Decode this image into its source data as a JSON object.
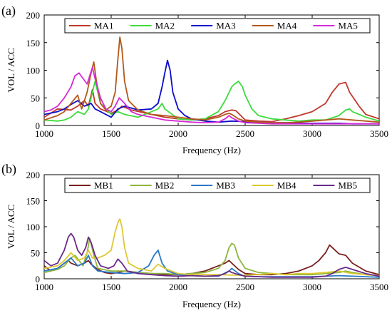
{
  "chart_data": [
    {
      "type": "line",
      "panel_label": "(a)",
      "xlabel": "Frequency (Hz)",
      "ylabel": "VOL / ACC",
      "xlim": [
        1000,
        3500
      ],
      "ylim": [
        0,
        200
      ],
      "xticks": [
        "1000",
        "1500",
        "2000",
        "2500",
        "3000",
        "3500"
      ],
      "yticks": [
        "0",
        "50",
        "100",
        "150",
        "200"
      ],
      "grid": false,
      "legend_position": "top",
      "series": [
        {
          "name": "MA1",
          "color": "#c0392b",
          "x": [
            1000,
            1100,
            1200,
            1250,
            1300,
            1330,
            1360,
            1380,
            1420,
            1500,
            1550,
            1580,
            1650,
            1800,
            1900,
            2000,
            2100,
            2200,
            2300,
            2350,
            2400,
            2430,
            2450,
            2500,
            2600,
            2700,
            2800,
            2900,
            3000,
            3100,
            3150,
            3200,
            3250,
            3280,
            3350,
            3400,
            3500
          ],
          "y": [
            15,
            30,
            28,
            35,
            45,
            35,
            65,
            40,
            30,
            22,
            28,
            35,
            28,
            20,
            15,
            12,
            10,
            12,
            18,
            25,
            28,
            27,
            22,
            10,
            8,
            7,
            12,
            18,
            25,
            40,
            60,
            75,
            78,
            60,
            35,
            20,
            12
          ]
        },
        {
          "name": "MA2",
          "color": "#3ddc3d",
          "x": [
            1000,
            1100,
            1150,
            1200,
            1250,
            1300,
            1330,
            1360,
            1380,
            1420,
            1500,
            1550,
            1600,
            1700,
            1850,
            1880,
            1900,
            2000,
            2100,
            2200,
            2300,
            2350,
            2400,
            2420,
            2450,
            2480,
            2500,
            2550,
            2600,
            2700,
            2800,
            2900,
            3000,
            3100,
            3200,
            3250,
            3280,
            3300,
            3400,
            3500
          ],
          "y": [
            10,
            8,
            10,
            15,
            25,
            20,
            30,
            60,
            80,
            40,
            20,
            25,
            20,
            15,
            30,
            40,
            30,
            12,
            10,
            12,
            25,
            45,
            70,
            75,
            80,
            70,
            55,
            30,
            18,
            12,
            10,
            8,
            10,
            10,
            18,
            28,
            30,
            25,
            15,
            8
          ]
        },
        {
          "name": "MA3",
          "color": "#0c0ccc",
          "x": [
            1000,
            1100,
            1150,
            1200,
            1250,
            1300,
            1350,
            1380,
            1420,
            1500,
            1550,
            1600,
            1700,
            1800,
            1850,
            1880,
            1900,
            1920,
            1940,
            1960,
            2000,
            2050,
            2100,
            2200,
            2300,
            2400,
            2500,
            2600,
            2700,
            2800,
            2900,
            3000,
            3100,
            3200,
            3300,
            3400,
            3500
          ],
          "y": [
            20,
            25,
            30,
            38,
            45,
            35,
            40,
            30,
            25,
            15,
            30,
            35,
            28,
            30,
            40,
            70,
            95,
            118,
            100,
            60,
            30,
            18,
            12,
            8,
            6,
            8,
            7,
            6,
            5,
            5,
            4,
            4,
            4,
            4,
            3,
            3,
            3
          ]
        },
        {
          "name": "MA4",
          "color": "#b4581a",
          "x": [
            1000,
            1100,
            1150,
            1200,
            1250,
            1280,
            1320,
            1350,
            1370,
            1390,
            1420,
            1460,
            1500,
            1530,
            1550,
            1565,
            1580,
            1600,
            1630,
            1700,
            1800,
            1900,
            2000,
            2100,
            2200,
            2300,
            2350,
            2380,
            2400,
            2450,
            2500,
            2600,
            2700,
            2800,
            2900,
            3000,
            3100,
            3200,
            3300,
            3400,
            3500
          ],
          "y": [
            10,
            18,
            25,
            40,
            55,
            30,
            60,
            95,
            115,
            80,
            40,
            28,
            35,
            60,
            120,
            160,
            140,
            80,
            45,
            28,
            20,
            18,
            15,
            12,
            10,
            15,
            20,
            22,
            20,
            12,
            8,
            6,
            5,
            5,
            6,
            8,
            10,
            12,
            10,
            8,
            6
          ]
        },
        {
          "name": "MA5",
          "color": "#d62ad6",
          "x": [
            1000,
            1050,
            1100,
            1150,
            1200,
            1230,
            1260,
            1290,
            1320,
            1340,
            1360,
            1380,
            1420,
            1460,
            1500,
            1530,
            1560,
            1600,
            1650,
            1700,
            1800,
            1900,
            2000,
            2100,
            2200,
            2300,
            2350,
            2380,
            2400,
            2450,
            2500,
            2600,
            2700,
            2800,
            2900,
            3000,
            3100,
            3200,
            3300,
            3400,
            3500
          ],
          "y": [
            25,
            28,
            35,
            50,
            70,
            90,
            95,
            85,
            75,
            90,
            105,
            85,
            50,
            30,
            25,
            35,
            50,
            40,
            25,
            20,
            15,
            10,
            8,
            6,
            5,
            6,
            12,
            18,
            14,
            8,
            5,
            4,
            3,
            3,
            3,
            3,
            3,
            3,
            3,
            3,
            3
          ]
        }
      ]
    },
    {
      "type": "line",
      "panel_label": "(b)",
      "xlabel": "Frequency (Hz)",
      "ylabel": "VOL / ACC",
      "xlim": [
        1000,
        3500
      ],
      "ylim": [
        0,
        200
      ],
      "xticks": [
        "1000",
        "1500",
        "2000",
        "2500",
        "3000",
        "3500"
      ],
      "yticks": [
        "0",
        "50",
        "100",
        "150",
        "200"
      ],
      "grid": false,
      "legend_position": "top",
      "series": [
        {
          "name": "MB1",
          "color": "#7a1f1f",
          "x": [
            1000,
            1050,
            1100,
            1150,
            1180,
            1200,
            1250,
            1300,
            1330,
            1350,
            1400,
            1450,
            1500,
            1550,
            1600,
            1700,
            1800,
            1900,
            2000,
            2100,
            2200,
            2300,
            2350,
            2380,
            2400,
            2450,
            2500,
            2600,
            2700,
            2800,
            2900,
            3000,
            3050,
            3100,
            3130,
            3150,
            3200,
            3250,
            3300,
            3400,
            3500
          ],
          "y": [
            25,
            15,
            20,
            30,
            35,
            30,
            25,
            30,
            35,
            28,
            18,
            12,
            10,
            12,
            15,
            12,
            10,
            8,
            8,
            10,
            15,
            25,
            30,
            35,
            30,
            18,
            10,
            8,
            8,
            10,
            15,
            25,
            35,
            50,
            65,
            60,
            48,
            45,
            30,
            15,
            8
          ]
        },
        {
          "name": "MB2",
          "color": "#8db63c",
          "x": [
            1000,
            1100,
            1150,
            1200,
            1230,
            1260,
            1290,
            1320,
            1340,
            1370,
            1400,
            1500,
            1600,
            1700,
            1800,
            1900,
            2000,
            2100,
            2200,
            2300,
            2350,
            2380,
            2400,
            2420,
            2450,
            2500,
            2600,
            2700,
            2800,
            2900,
            3000,
            3100,
            3200,
            3250,
            3300,
            3400,
            3500
          ],
          "y": [
            12,
            18,
            25,
            40,
            45,
            35,
            25,
            50,
            78,
            45,
            20,
            15,
            15,
            12,
            10,
            10,
            8,
            10,
            12,
            20,
            35,
            60,
            68,
            65,
            40,
            20,
            12,
            10,
            8,
            8,
            8,
            10,
            12,
            15,
            12,
            8,
            6
          ]
        },
        {
          "name": "MB3",
          "color": "#2a78c8",
          "x": [
            1000,
            1100,
            1150,
            1200,
            1250,
            1300,
            1330,
            1360,
            1400,
            1500,
            1600,
            1700,
            1780,
            1820,
            1850,
            1880,
            1920,
            2000,
            2100,
            2200,
            2300,
            2380,
            2400,
            2450,
            2500,
            2600,
            2700,
            2800,
            2900,
            3000,
            3100,
            3200,
            3300,
            3400,
            3500
          ],
          "y": [
            15,
            20,
            30,
            40,
            25,
            30,
            45,
            25,
            15,
            12,
            10,
            12,
            25,
            45,
            55,
            30,
            15,
            8,
            6,
            5,
            5,
            15,
            20,
            10,
            5,
            4,
            4,
            4,
            4,
            4,
            5,
            6,
            5,
            4,
            3
          ]
        },
        {
          "name": "MB4",
          "color": "#dcc933",
          "x": [
            1000,
            1100,
            1150,
            1200,
            1250,
            1300,
            1330,
            1360,
            1400,
            1450,
            1500,
            1530,
            1550,
            1565,
            1580,
            1600,
            1630,
            1700,
            1800,
            1850,
            1900,
            2000,
            2100,
            2200,
            2300,
            2400,
            2500,
            2600,
            2700,
            2800,
            2900,
            3000,
            3100,
            3200,
            3300,
            3400,
            3500
          ],
          "y": [
            20,
            25,
            35,
            50,
            35,
            40,
            55,
            40,
            40,
            45,
            55,
            90,
            108,
            115,
            100,
            60,
            30,
            20,
            15,
            28,
            20,
            10,
            8,
            8,
            8,
            7,
            7,
            8,
            10,
            8,
            10,
            10,
            12,
            15,
            10,
            8,
            6
          ]
        },
        {
          "name": "MB5",
          "color": "#6a2a8a",
          "x": [
            1000,
            1050,
            1100,
            1150,
            1180,
            1200,
            1220,
            1250,
            1280,
            1310,
            1330,
            1350,
            1380,
            1420,
            1480,
            1520,
            1550,
            1580,
            1620,
            1700,
            1800,
            1900,
            2000,
            2100,
            2200,
            2300,
            2350,
            2380,
            2400,
            2450,
            2500,
            2600,
            2700,
            2800,
            2900,
            3000,
            3100,
            3150,
            3200,
            3250,
            3300,
            3400,
            3500
          ],
          "y": [
            35,
            25,
            30,
            55,
            80,
            87,
            80,
            55,
            45,
            60,
            80,
            70,
            45,
            25,
            20,
            25,
            38,
            30,
            15,
            10,
            8,
            6,
            5,
            6,
            5,
            6,
            10,
            15,
            12,
            8,
            5,
            4,
            3,
            3,
            3,
            3,
            5,
            10,
            18,
            22,
            18,
            10,
            5
          ]
        }
      ]
    }
  ]
}
